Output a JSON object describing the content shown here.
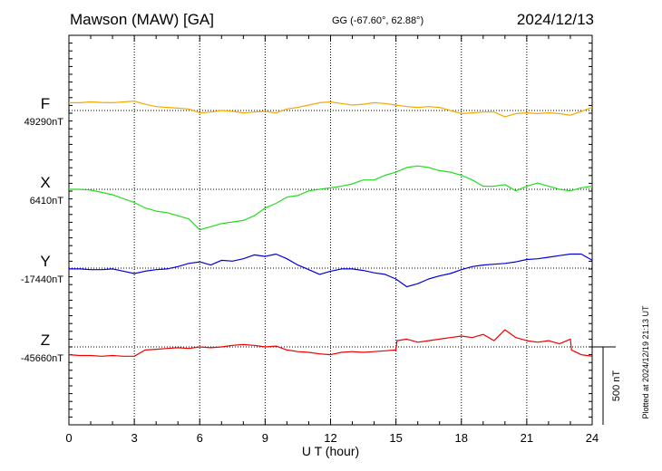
{
  "header": {
    "station": "Mawson (MAW)  [GA]",
    "coords": "GG (-67.60°,  62.88°)",
    "date": "2024/12/13"
  },
  "chart_data": {
    "type": "line",
    "xlabel": "U T (hour)",
    "xlim": [
      0,
      24
    ],
    "xticks": [
      "0",
      "3",
      "6",
      "9",
      "12",
      "15",
      "18",
      "21",
      "24"
    ],
    "scale_bar_label": "500 nT",
    "scale_bar_nT": 500,
    "plotted_note": "Plotted at 2024/12/19 21:13 UT",
    "series": [
      {
        "name": "F",
        "baseline_label": "49290nT",
        "baseline_nT": 49290,
        "color": "#f5a800",
        "x": [
          0,
          0.5,
          1,
          1.5,
          2,
          2.5,
          3,
          3.5,
          4,
          4.5,
          5,
          5.5,
          6,
          6.5,
          7,
          7.5,
          8,
          8.5,
          9,
          9.5,
          10,
          10.5,
          11,
          11.5,
          12,
          12.5,
          13,
          13.5,
          14,
          14.5,
          15,
          15.5,
          16,
          16.5,
          17,
          17.5,
          18,
          18.5,
          19,
          19.5,
          20,
          20.5,
          21,
          21.5,
          22,
          22.5,
          23,
          23.5,
          24
        ],
        "offset_nT": [
          50,
          50,
          55,
          52,
          50,
          55,
          60,
          40,
          25,
          20,
          15,
          10,
          -15,
          -10,
          0,
          -5,
          -15,
          -10,
          -5,
          -15,
          10,
          20,
          35,
          50,
          55,
          45,
          35,
          40,
          50,
          45,
          35,
          25,
          20,
          25,
          20,
          0,
          -20,
          -15,
          -10,
          -10,
          -40,
          -20,
          -15,
          -20,
          -15,
          -20,
          -30,
          -5,
          20
        ]
      },
      {
        "name": "X",
        "baseline_label": "6410nT",
        "baseline_nT": 6410,
        "color": "#22dd22",
        "x": [
          0,
          0.5,
          1,
          1.5,
          2,
          2.5,
          3,
          3.5,
          4,
          4.5,
          5,
          5.5,
          6,
          6.5,
          7,
          7.5,
          8,
          8.5,
          9,
          9.5,
          10,
          10.5,
          11,
          11.5,
          12,
          12.5,
          13,
          13.5,
          14,
          14.5,
          15,
          15.5,
          16,
          16.5,
          17,
          17.5,
          18,
          18.5,
          19,
          19.5,
          20,
          20.5,
          21,
          21.5,
          22,
          22.5,
          23,
          23.5,
          24
        ],
        "offset_nT": [
          0,
          0,
          -5,
          -20,
          -35,
          -60,
          -85,
          -120,
          -140,
          -150,
          -170,
          -190,
          -260,
          -240,
          -220,
          -210,
          -200,
          -170,
          -120,
          -90,
          -50,
          -40,
          -10,
          0,
          10,
          20,
          35,
          60,
          60,
          90,
          110,
          140,
          150,
          140,
          120,
          110,
          90,
          60,
          20,
          20,
          30,
          -10,
          20,
          40,
          20,
          0,
          -10,
          10,
          20
        ]
      },
      {
        "name": "Y",
        "baseline_label": "-17440nT",
        "baseline_nT": -17440,
        "color": "#0000dd",
        "x": [
          0,
          0.5,
          1,
          1.5,
          2,
          2.5,
          3,
          3.5,
          4,
          4.5,
          5,
          5.5,
          6,
          6.5,
          7,
          7.5,
          8,
          8.5,
          9,
          9.5,
          10,
          10.5,
          11,
          11.5,
          12,
          12.5,
          13,
          13.5,
          14,
          14.5,
          15,
          15.5,
          16,
          16.5,
          17,
          17.5,
          18,
          18.5,
          19,
          19.5,
          20,
          20.5,
          21,
          21.5,
          22,
          22.5,
          23,
          23.5,
          24
        ],
        "offset_nT": [
          -5,
          -5,
          -10,
          -10,
          -5,
          -20,
          -35,
          -20,
          -10,
          -5,
          10,
          30,
          40,
          20,
          50,
          45,
          60,
          85,
          75,
          90,
          60,
          20,
          -10,
          -40,
          -20,
          -5,
          -5,
          -15,
          -30,
          -40,
          -70,
          -120,
          -100,
          -70,
          -50,
          -35,
          -10,
          10,
          20,
          25,
          30,
          40,
          55,
          60,
          70,
          80,
          90,
          90,
          50
        ]
      },
      {
        "name": "Z",
        "baseline_label": "-45660nT",
        "baseline_nT": -45660,
        "color": "#ee0000",
        "x": [
          0,
          0.5,
          1,
          1.5,
          2,
          2.5,
          3,
          3.5,
          4,
          4.5,
          5,
          5.5,
          6,
          6.5,
          7,
          7.5,
          8,
          8.5,
          9,
          9.5,
          10,
          10.5,
          11,
          11.5,
          12,
          12.5,
          13,
          13.5,
          14,
          14.5,
          15,
          15.05,
          15.5,
          16,
          16.5,
          17,
          17.5,
          18,
          18.5,
          19,
          19.5,
          20,
          20.5,
          21,
          21.5,
          22,
          22.5,
          23,
          23.05,
          23.5,
          24
        ],
        "offset_nT": [
          -50,
          -55,
          -55,
          -60,
          -55,
          -60,
          -60,
          -20,
          -15,
          -10,
          -5,
          -10,
          0,
          -5,
          0,
          10,
          15,
          10,
          0,
          5,
          -20,
          -30,
          -35,
          -45,
          -50,
          -35,
          -30,
          -35,
          -30,
          -25,
          -20,
          40,
          50,
          30,
          40,
          50,
          60,
          70,
          60,
          80,
          40,
          110,
          60,
          40,
          30,
          40,
          20,
          50,
          -20,
          -50,
          -60
        ]
      }
    ]
  }
}
